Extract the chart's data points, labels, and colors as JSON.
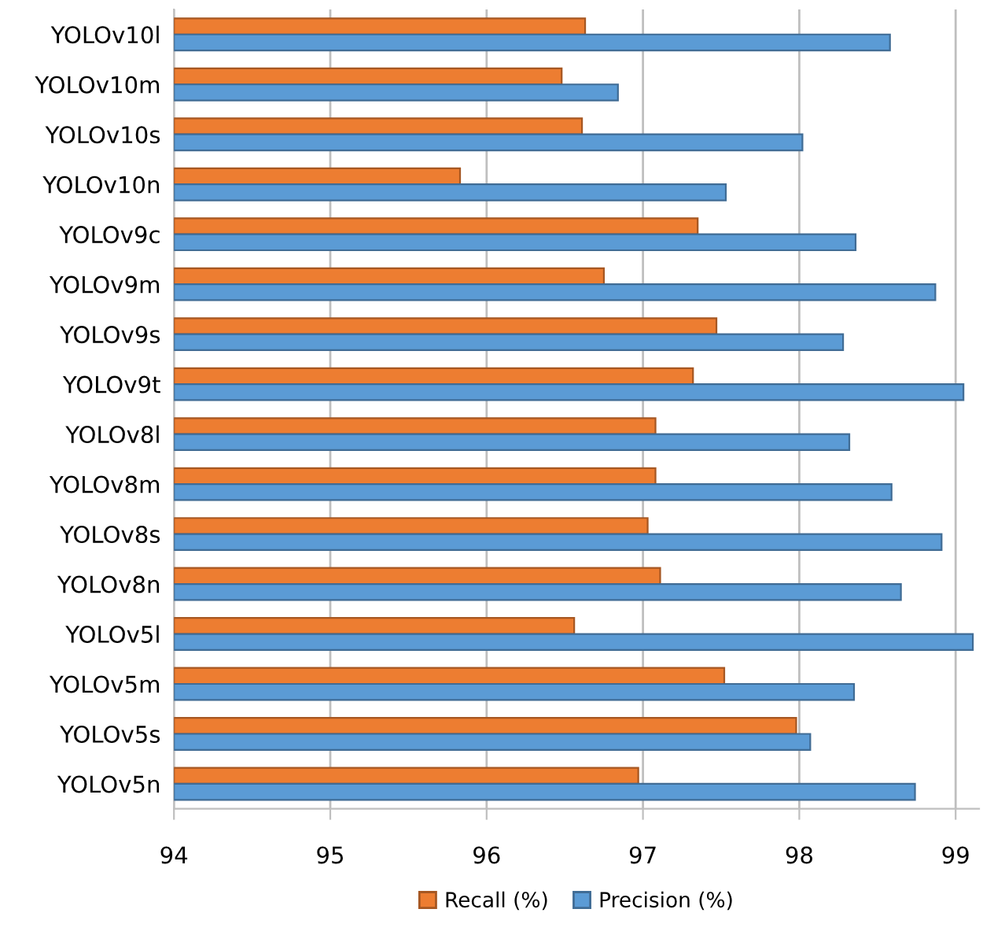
{
  "chart_data": {
    "type": "bar",
    "orientation": "horizontal",
    "categories": [
      "YOLOv10l",
      "YOLOv10m",
      "YOLOv10s",
      "YOLOv10n",
      "YOLOv9c",
      "YOLOv9m",
      "YOLOv9s",
      "YOLOv9t",
      "YOLOv8l",
      "YOLOv8m",
      "YOLOv8s",
      "YOLOv8n",
      "YOLOv5l",
      "YOLOv5m",
      "YOLOv5s",
      "YOLOv5n"
    ],
    "series": [
      {
        "name": "Recall (%)",
        "color": "#ed7d31",
        "values": [
          96.63,
          96.48,
          96.61,
          95.83,
          97.35,
          96.75,
          97.47,
          97.32,
          97.08,
          97.08,
          97.03,
          97.11,
          96.56,
          97.52,
          97.98,
          96.97
        ]
      },
      {
        "name": "Precision (%)",
        "color": "#5b9bd5",
        "values": [
          98.58,
          96.84,
          98.02,
          97.53,
          98.36,
          98.87,
          98.28,
          99.05,
          98.32,
          98.59,
          98.91,
          98.65,
          99.11,
          98.35,
          98.07,
          98.74
        ]
      }
    ],
    "xlim": [
      94,
      99.15
    ],
    "xticks": [
      94,
      95,
      96,
      97,
      98,
      99
    ],
    "grid": "x",
    "legend": "bottom"
  }
}
